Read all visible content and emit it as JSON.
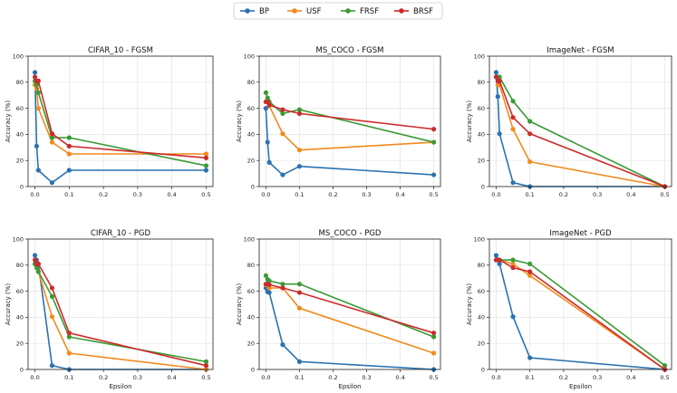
{
  "legend": [
    {
      "name": "BP",
      "color": "#2a72b0"
    },
    {
      "name": "USF",
      "color": "#f28a1e"
    },
    {
      "name": "FRSF",
      "color": "#3a9a34"
    },
    {
      "name": "BRSF",
      "color": "#cc2b2b"
    }
  ],
  "chart_data": [
    {
      "type": "line",
      "title": "CIFAR_10 - FGSM",
      "xlabel": "",
      "ylabel": "Accuracy (%)",
      "xlim": [
        -0.02,
        0.52
      ],
      "ylim": [
        0,
        100
      ],
      "xticks": [
        "0.0",
        "0.1",
        "0.2",
        "0.3",
        "0.4",
        "0.5"
      ],
      "yticks": [
        "0",
        "20",
        "40",
        "60",
        "80",
        "100"
      ],
      "grid": true,
      "series": [
        {
          "name": "BP",
          "x": [
            0,
            0.005,
            0.01,
            0.05,
            0.1,
            0.5
          ],
          "values": [
            87.5,
            31,
            12.5,
            3,
            12.5,
            12.5
          ]
        },
        {
          "name": "USF",
          "x": [
            0,
            0.005,
            0.01,
            0.05,
            0.1,
            0.5
          ],
          "values": [
            78,
            75,
            60,
            34,
            25,
            25
          ]
        },
        {
          "name": "FRSF",
          "x": [
            0,
            0.005,
            0.01,
            0.05,
            0.1,
            0.5
          ],
          "values": [
            81,
            78,
            72,
            37.5,
            37.5,
            16
          ]
        },
        {
          "name": "BRSF",
          "x": [
            0,
            0.005,
            0.01,
            0.05,
            0.1,
            0.5
          ],
          "values": [
            84,
            81,
            81,
            40.5,
            31,
            22
          ]
        }
      ]
    },
    {
      "type": "line",
      "title": "MS_COCO - FGSM",
      "xlabel": "",
      "ylabel": "Accuracy (%)",
      "xlim": [
        -0.02,
        0.52
      ],
      "ylim": [
        0,
        100
      ],
      "xticks": [
        "0.0",
        "0.1",
        "0.2",
        "0.3",
        "0.4",
        "0.5"
      ],
      "yticks": [
        "0",
        "20",
        "40",
        "60",
        "80",
        "100"
      ],
      "grid": true,
      "series": [
        {
          "name": "BP",
          "x": [
            0,
            0.005,
            0.01,
            0.05,
            0.1,
            0.5
          ],
          "values": [
            60,
            34,
            18.5,
            9,
            15.5,
            9
          ]
        },
        {
          "name": "USF",
          "x": [
            0,
            0.005,
            0.01,
            0.05,
            0.1,
            0.5
          ],
          "values": [
            65,
            65.5,
            62,
            40.5,
            28,
            34
          ]
        },
        {
          "name": "FRSF",
          "x": [
            0,
            0.005,
            0.01,
            0.05,
            0.1,
            0.5
          ],
          "values": [
            72,
            68,
            65,
            56,
            59,
            34
          ]
        },
        {
          "name": "BRSF",
          "x": [
            0,
            0.005,
            0.01,
            0.05,
            0.1,
            0.5
          ],
          "values": [
            65,
            65,
            62.5,
            59,
            56,
            44
          ]
        }
      ]
    },
    {
      "type": "line",
      "title": "ImageNet - FGSM",
      "xlabel": "",
      "ylabel": "Accuracy (%)",
      "xlim": [
        -0.02,
        0.52
      ],
      "ylim": [
        0,
        100
      ],
      "xticks": [
        "0.0",
        "0.1",
        "0.2",
        "0.3",
        "0.4",
        "0.5"
      ],
      "yticks": [
        "0",
        "20",
        "40",
        "60",
        "80",
        "100"
      ],
      "grid": true,
      "series": [
        {
          "name": "BP",
          "x": [
            0,
            0.005,
            0.01,
            0.05,
            0.1,
            0.5
          ],
          "values": [
            87.5,
            69,
            40.5,
            3,
            0,
            0
          ]
        },
        {
          "name": "USF",
          "x": [
            0,
            0.005,
            0.01,
            0.05,
            0.1,
            0.5
          ],
          "values": [
            84,
            78,
            78,
            44,
            19,
            0
          ]
        },
        {
          "name": "FRSF",
          "x": [
            0,
            0.005,
            0.01,
            0.05,
            0.1,
            0.5
          ],
          "values": [
            84,
            84,
            84,
            65.5,
            50,
            0
          ]
        },
        {
          "name": "BRSF",
          "x": [
            0,
            0.005,
            0.01,
            0.05,
            0.1,
            0.5
          ],
          "values": [
            84,
            81,
            81,
            53,
            40.5,
            0
          ]
        }
      ]
    },
    {
      "type": "line",
      "title": "CIFAR_10 - PGD",
      "xlabel": "Epsilon",
      "ylabel": "Accuracy (%)",
      "xlim": [
        -0.02,
        0.52
      ],
      "ylim": [
        0,
        100
      ],
      "xticks": [
        "0.0",
        "0.1",
        "0.2",
        "0.3",
        "0.4",
        "0.5"
      ],
      "yticks": [
        "0",
        "20",
        "40",
        "60",
        "80",
        "100"
      ],
      "grid": true,
      "series": [
        {
          "name": "BP",
          "x": [
            0,
            0.005,
            0.01,
            0.05,
            0.1,
            0.5
          ],
          "values": [
            87.5,
            84,
            81,
            3,
            0,
            0
          ]
        },
        {
          "name": "USF",
          "x": [
            0,
            0.005,
            0.01,
            0.05,
            0.1,
            0.5
          ],
          "values": [
            81,
            78,
            75,
            40.5,
            12.5,
            0
          ]
        },
        {
          "name": "FRSF",
          "x": [
            0,
            0.005,
            0.01,
            0.05,
            0.1,
            0.5
          ],
          "values": [
            81,
            78,
            75,
            56,
            25,
            6
          ]
        },
        {
          "name": "BRSF",
          "x": [
            0,
            0.005,
            0.01,
            0.05,
            0.1,
            0.5
          ],
          "values": [
            84,
            81,
            81,
            62.5,
            28,
            3
          ]
        }
      ]
    },
    {
      "type": "line",
      "title": "MS_COCO - PGD",
      "xlabel": "Epsilon",
      "ylabel": "Accuracy (%)",
      "xlim": [
        -0.02,
        0.52
      ],
      "ylim": [
        0,
        100
      ],
      "xticks": [
        "0.0",
        "0.1",
        "0.2",
        "0.3",
        "0.4",
        "0.5"
      ],
      "yticks": [
        "0",
        "20",
        "40",
        "60",
        "80",
        "100"
      ],
      "grid": true,
      "series": [
        {
          "name": "BP",
          "x": [
            0,
            0.005,
            0.01,
            0.05,
            0.1,
            0.5
          ],
          "values": [
            62.5,
            59.5,
            59,
            19,
            6,
            0
          ]
        },
        {
          "name": "USF",
          "x": [
            0,
            0.005,
            0.01,
            0.05,
            0.1,
            0.5
          ],
          "values": [
            65,
            65,
            62.5,
            62.5,
            47,
            12.5
          ]
        },
        {
          "name": "FRSF",
          "x": [
            0,
            0.005,
            0.01,
            0.05,
            0.1,
            0.5
          ],
          "values": [
            72,
            69,
            68,
            65.5,
            65.5,
            25
          ]
        },
        {
          "name": "BRSF",
          "x": [
            0,
            0.005,
            0.01,
            0.05,
            0.1,
            0.5
          ],
          "values": [
            65.5,
            65.5,
            65,
            62.5,
            59,
            28
          ]
        }
      ]
    },
    {
      "type": "line",
      "title": "ImageNet - PGD",
      "xlabel": "Epsilon",
      "ylabel": "Accuracy (%)",
      "xlim": [
        -0.02,
        0.52
      ],
      "ylim": [
        0,
        100
      ],
      "xticks": [
        "0.0",
        "0.1",
        "0.2",
        "0.3",
        "0.4",
        "0.5"
      ],
      "yticks": [
        "0",
        "20",
        "40",
        "60",
        "80",
        "100"
      ],
      "grid": true,
      "series": [
        {
          "name": "BP",
          "x": [
            0,
            0.005,
            0.01,
            0.05,
            0.1,
            0.5
          ],
          "values": [
            87.5,
            84,
            81,
            40.5,
            9,
            0
          ]
        },
        {
          "name": "USF",
          "x": [
            0,
            0.005,
            0.01,
            0.05,
            0.1,
            0.5
          ],
          "values": [
            84,
            84,
            84,
            81,
            72,
            0
          ]
        },
        {
          "name": "FRSF",
          "x": [
            0,
            0.005,
            0.01,
            0.05,
            0.1,
            0.5
          ],
          "values": [
            84,
            84,
            84,
            84,
            81,
            3
          ]
        },
        {
          "name": "BRSF",
          "x": [
            0,
            0.005,
            0.01,
            0.05,
            0.1,
            0.5
          ],
          "values": [
            84,
            84,
            84,
            78,
            75,
            0
          ]
        }
      ]
    }
  ]
}
